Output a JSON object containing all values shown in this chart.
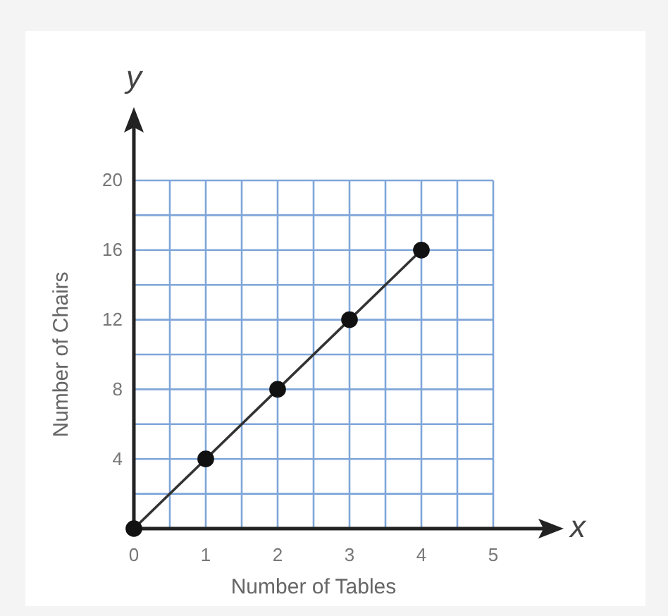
{
  "chart_data": {
    "type": "line",
    "xlabel": "Number of Tables",
    "ylabel": "Number of Chairs",
    "annotations": [
      "x",
      "y"
    ],
    "x": [
      0,
      1,
      2,
      3,
      4
    ],
    "series": [
      {
        "color": "#333333",
        "values": [
          0,
          4,
          8,
          12,
          16
        ]
      }
    ],
    "xlim": [
      0,
      5
    ],
    "ylim": [
      0,
      20
    ],
    "xticks": [
      0,
      {
        "value": 0.5,
        "label": null
      },
      1,
      {
        "value": 1.5,
        "label": null
      },
      2,
      {
        "value": 2.5,
        "label": null
      },
      3,
      {
        "value": 3.5,
        "label": null
      },
      4,
      {
        "value": 4.5,
        "label": null
      },
      5
    ],
    "yticks": [
      {
        "value": 0,
        "label": null
      },
      {
        "value": 2,
        "label": null
      },
      4,
      {
        "value": 6,
        "label": null
      },
      8,
      {
        "value": 10,
        "label": null
      },
      12,
      {
        "value": 14,
        "label": null
      },
      16,
      {
        "value": 18,
        "label": null
      },
      20
    ],
    "grid": true,
    "marker": "circle",
    "line_style": "solid"
  }
}
